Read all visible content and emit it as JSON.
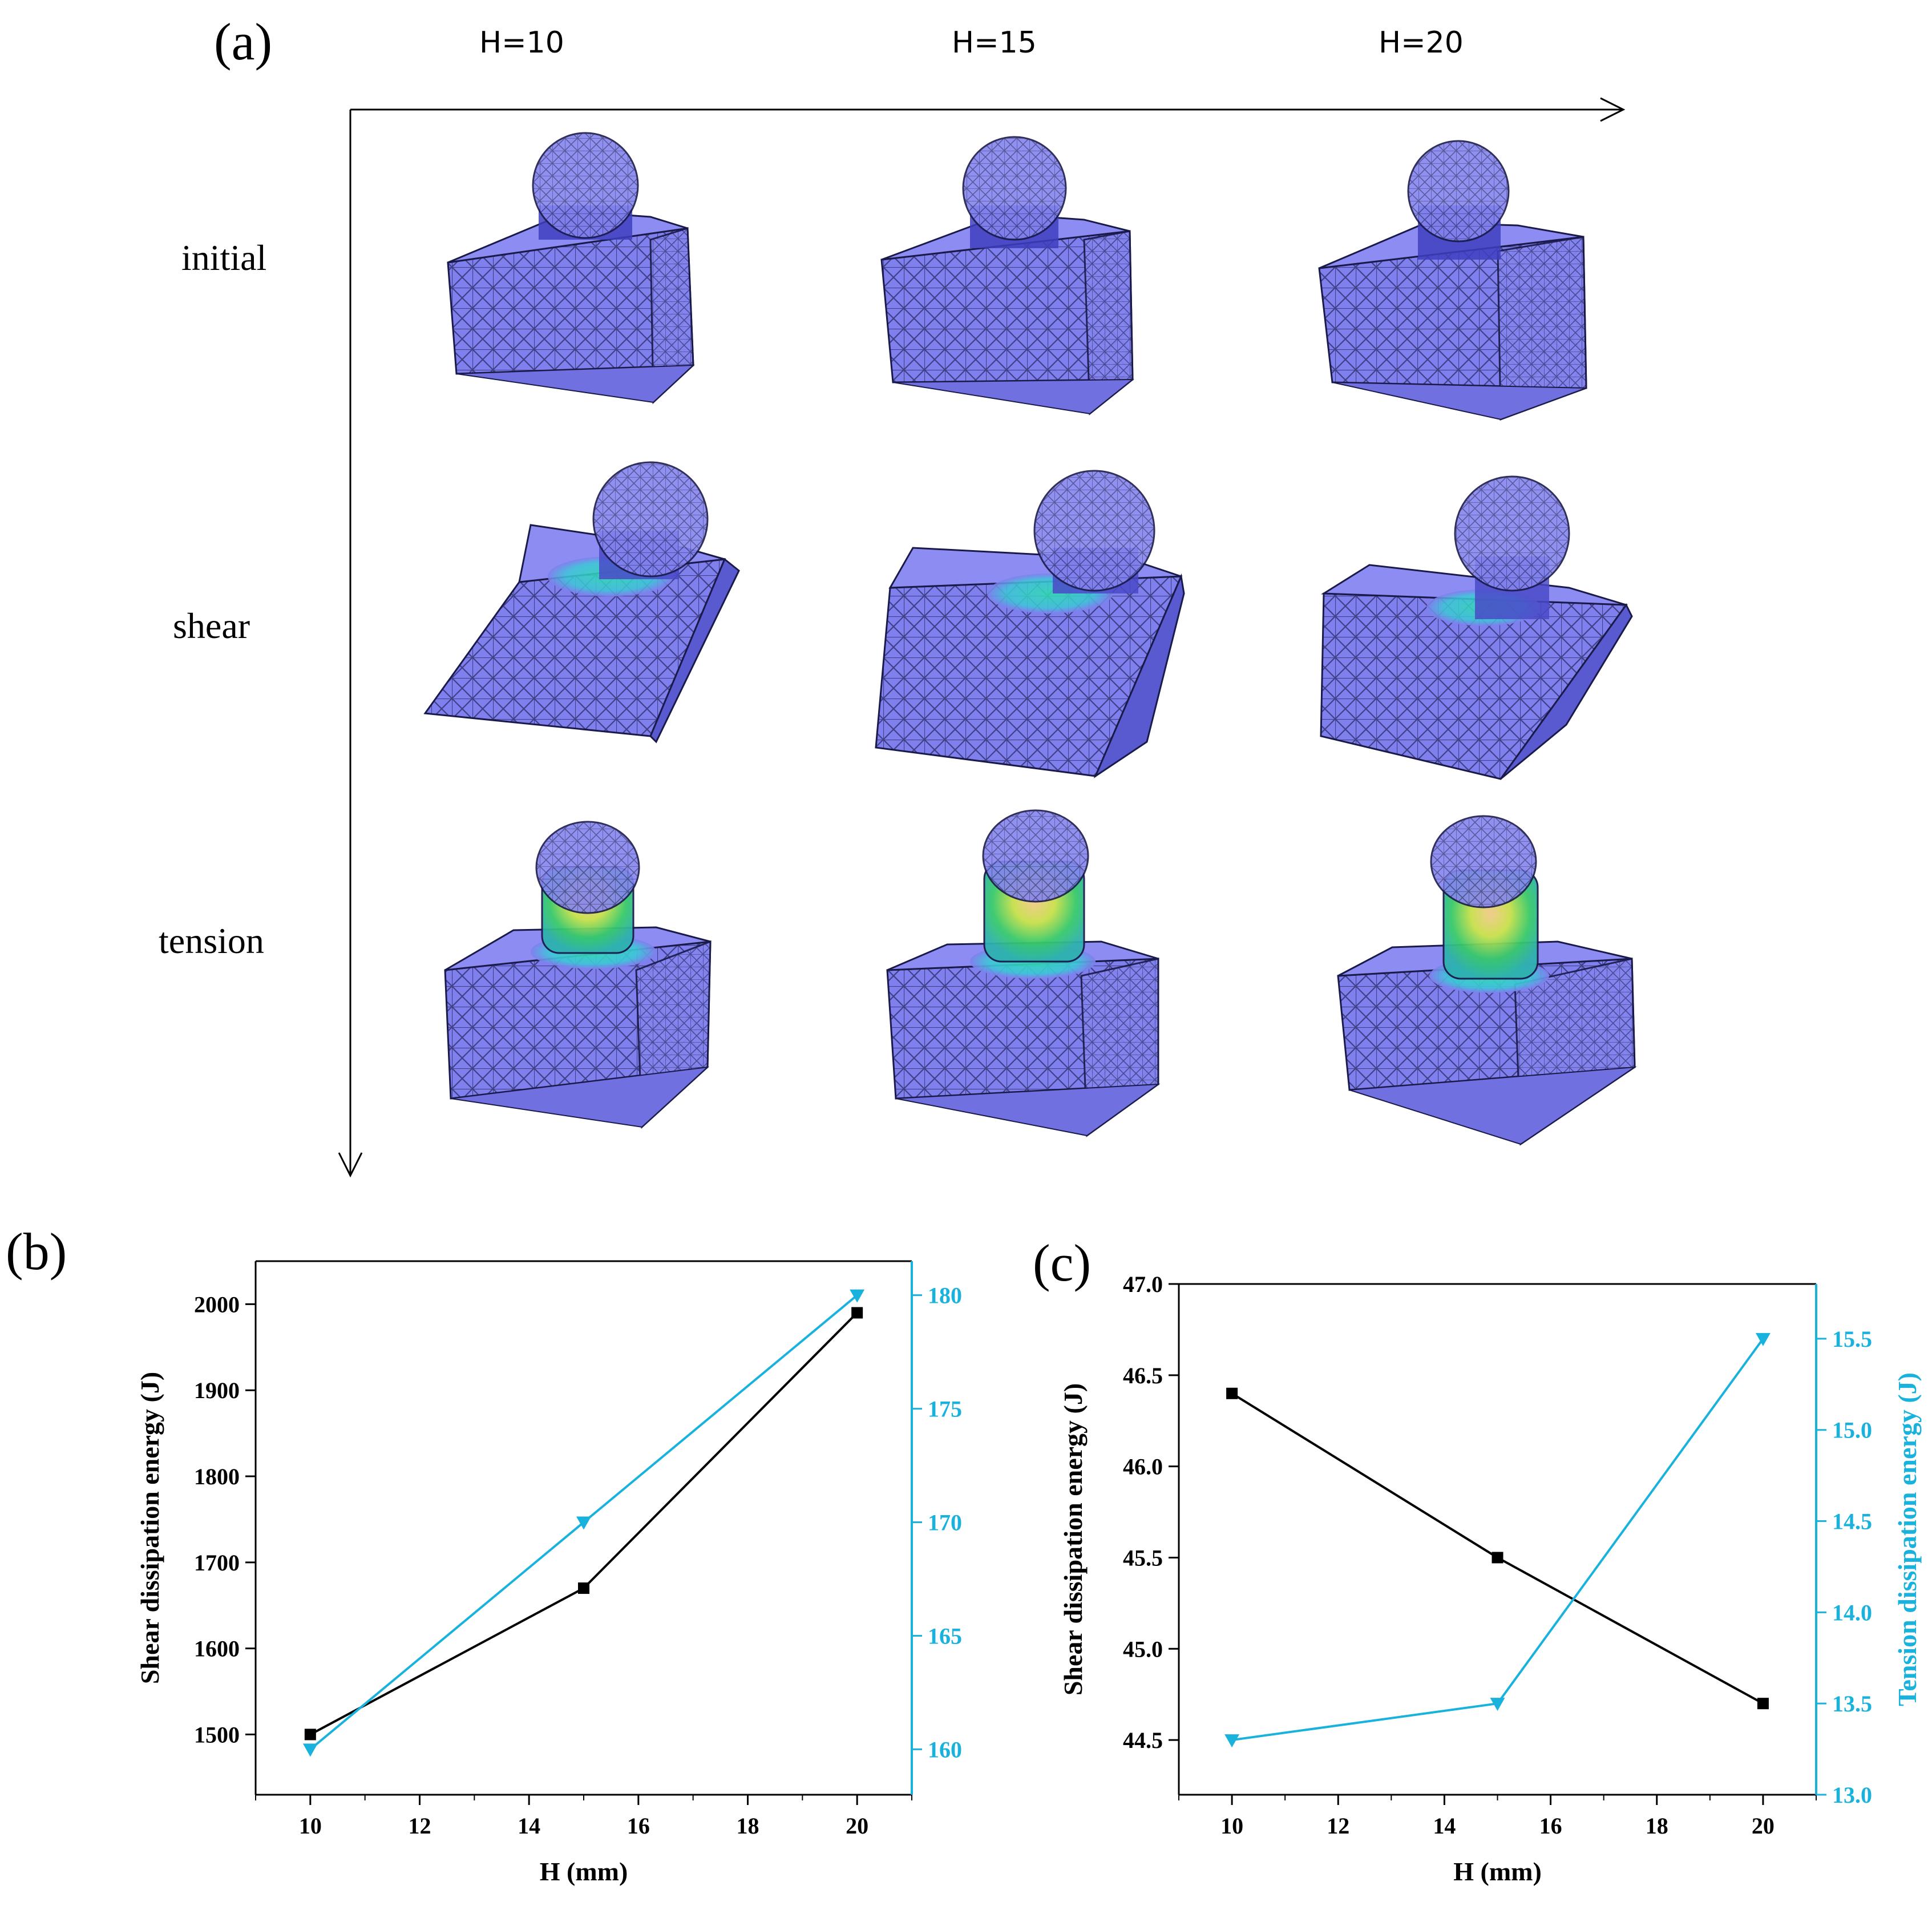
{
  "panels": {
    "a_label": "(a)",
    "b_label": "(b)",
    "c_label": "(c)"
  },
  "panel_a": {
    "column_headers": [
      "H=10",
      "H=15",
      "H=20"
    ],
    "row_headers": [
      "initial",
      "shear",
      "tension"
    ]
  },
  "colors": {
    "shear_series": "#000000",
    "tension_series": "#19b2dc",
    "mesh_fill": "#7f7fee",
    "mesh_line": "#1a1a4a"
  },
  "chart_data": [
    {
      "type": "line",
      "panel": "(b)",
      "xlabel": "H (mm)",
      "ylabel": "Shear dissipation energy (J)",
      "y2label": "Tension dissipation energy (J)",
      "xlim": [
        9,
        21
      ],
      "ylim": [
        1430,
        2050
      ],
      "y2lim": [
        158,
        181.5
      ],
      "xticks": [
        10,
        12,
        14,
        16,
        18,
        20
      ],
      "yticks": [
        1500,
        1600,
        1700,
        1800,
        1900,
        2000
      ],
      "y2ticks": [
        160,
        165,
        170,
        175,
        180
      ],
      "series": [
        {
          "axis": "left",
          "marker": "square",
          "color": "#000000",
          "x": [
            10,
            15,
            20
          ],
          "y": [
            1500,
            1670,
            1990
          ]
        },
        {
          "axis": "right",
          "marker": "triangle-down",
          "color": "#19b2dc",
          "x": [
            10,
            15,
            20
          ],
          "y": [
            160,
            170,
            180
          ]
        }
      ]
    },
    {
      "type": "line",
      "panel": "(c)",
      "xlabel": "H (mm)",
      "ylabel": "Shear dissipation energy (J)",
      "y2label": "Tension dissipation energy (J)",
      "xlim": [
        9,
        21
      ],
      "ylim": [
        44.2,
        47.0
      ],
      "y2lim": [
        13.0,
        15.8
      ],
      "xticks": [
        10,
        12,
        14,
        16,
        18,
        20
      ],
      "yticks": [
        44.5,
        45.0,
        45.5,
        46.0,
        46.5,
        47.0
      ],
      "y2ticks": [
        13.0,
        13.5,
        14.0,
        14.5,
        15.0,
        15.5
      ],
      "series": [
        {
          "axis": "left",
          "marker": "square",
          "color": "#000000",
          "x": [
            10,
            15,
            20
          ],
          "y": [
            46.4,
            45.5,
            44.7
          ]
        },
        {
          "axis": "right",
          "marker": "triangle-down",
          "color": "#19b2dc",
          "x": [
            10,
            15,
            20
          ],
          "y": [
            13.3,
            13.5,
            15.5
          ]
        }
      ]
    }
  ]
}
